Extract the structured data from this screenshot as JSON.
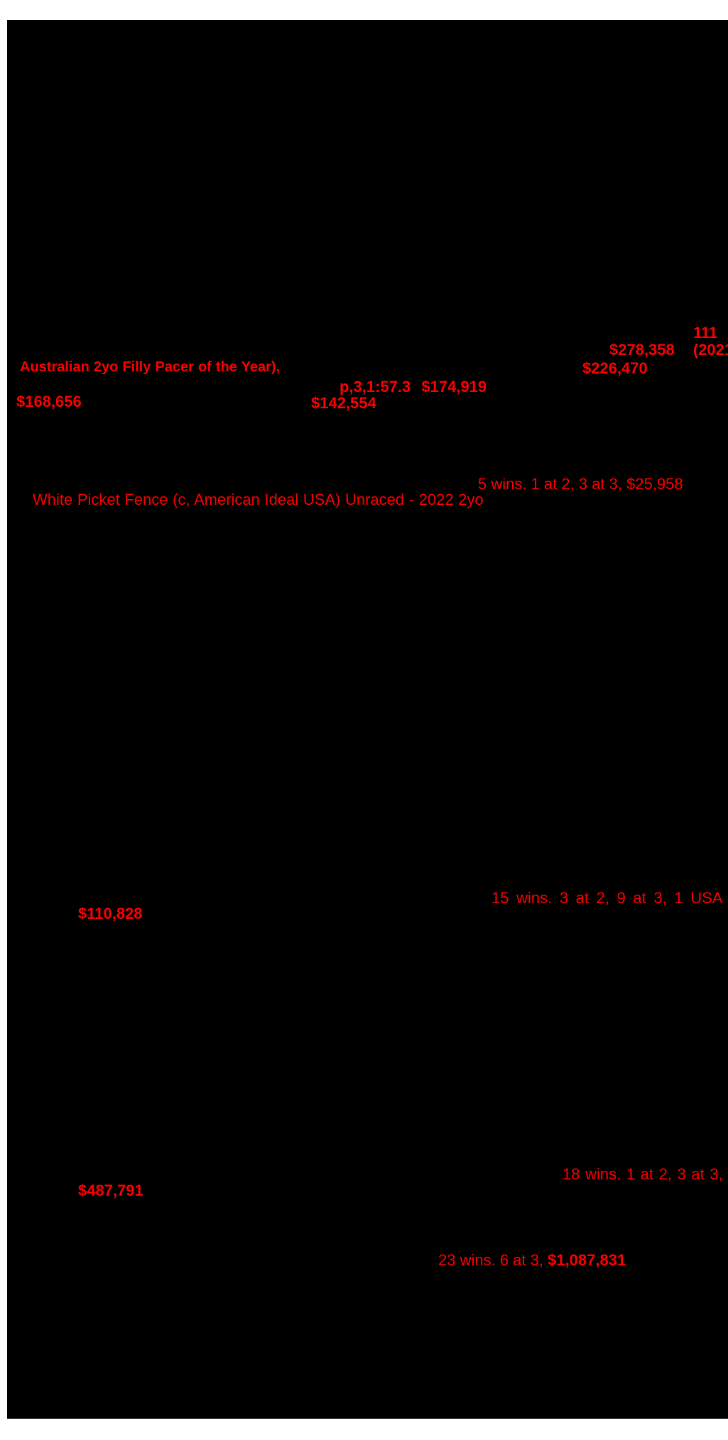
{
  "document": {
    "type": "sale-catalogue-pedigree-page",
    "colors": {
      "highlight_red": "#fe0000",
      "page_black": "#000000",
      "margin_white": "#ffffff"
    },
    "highlights": {
      "lot_number": "111",
      "earnings_278358": "$278,358 (2021",
      "award_line": "Australian 2yo Filly Pacer of the Year),",
      "earnings_226470": "$226,470",
      "record_time_and_earnings": "p,3,1:57.3 $174,919",
      "earnings_168656": "$168,656",
      "earnings_142554": "$142,554",
      "race_record_25958": "5 wins. 1 at 2, 3 at 3, $25,958",
      "progeny_line": "White Picket Fence (c, American Ideal USA) Unraced - 2022 2yo",
      "race_record_usa": "15 wins. 3 at 2, 9 at 3, 1 USA",
      "earnings_110828": "$110,828",
      "race_record_18wins": "18 wins. 1 at 2, 3 at 3,",
      "earnings_487791": "$487,791",
      "race_record_23wins": "23 wins. 6 at 3, ",
      "earnings_1087831": "$1,087,831"
    }
  }
}
